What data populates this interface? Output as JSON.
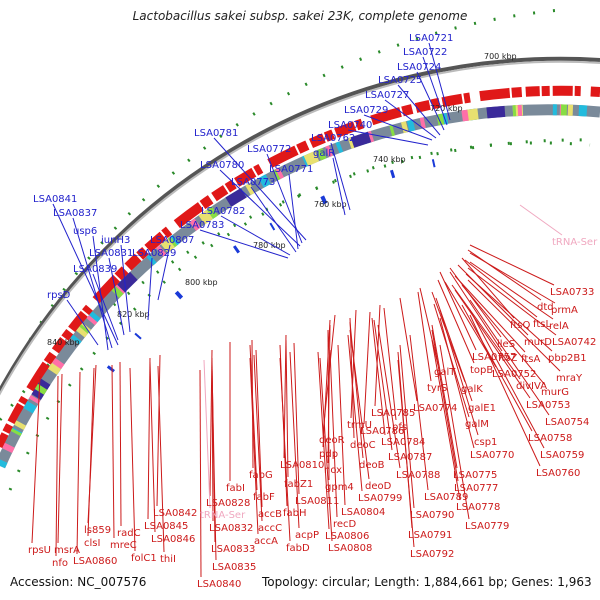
{
  "title": "Lactobacillus sakei subsp. sakei 23K, complete genome",
  "footer": {
    "accession": "Accession: NC_007576",
    "summary": "Topology: circular; Length: 1,884,661 bp; Genes: 1,963"
  },
  "colors": {
    "blue_label": "#2222cc",
    "red_label": "#cc1a1a",
    "pink_label": "#f0a8c0",
    "backbone": "#888888",
    "forward_gene": "#1a3ad8",
    "reverse_gene": "#e01818",
    "gc_marker": "#2a7a2a"
  },
  "tick_labels": [
    "700 kbp",
    "720 kbp",
    "740 kbp",
    "760 kbp",
    "780 kbp",
    "800 kbp",
    "820 kbp",
    "840 kbp"
  ],
  "blue_labels": [
    "LSA0721",
    "LSA0722",
    "LSA0724",
    "LSA0725",
    "LSA0727",
    "LSA0729",
    "LSA0740",
    "LSA0762",
    "galR",
    "LSA0781",
    "LSA0772",
    "LSA0780",
    "LSA0771",
    "LSA0773",
    "LSA0782",
    "LSA0783",
    "LSA0807",
    "LSA0829",
    "LSA0841",
    "LSA0837",
    "usp6",
    "iunH3",
    "LSA0831",
    "LSA0839",
    "rpsD"
  ],
  "red_labels": [
    "LSA0733",
    "dtd",
    "prmA",
    "ftsQ",
    "ftsL",
    "relA",
    "murD",
    "LSA0742",
    "ileS",
    "ftsZ",
    "pbp2B1",
    "LSA0757",
    "ftsA",
    "mraY",
    "topB",
    "LSA0752",
    "murG",
    "divIVA",
    "LSA0753",
    "galT",
    "tyrS",
    "galK",
    "LSA0754",
    "LSA0774",
    "galE1",
    "LSA0758",
    "LSA0785",
    "pfs",
    "galM",
    "trmU",
    "LSA0786",
    "csp1",
    "LSA0759",
    "deoR",
    "deoC",
    "LSA0784",
    "LSA0770",
    "pdp",
    "LSA0787",
    "LSA0760",
    "deoB",
    "nox",
    "LSA0788",
    "LSA0775",
    "gpm4",
    "LSA0810",
    "LSA0777",
    "fabG",
    "deoD",
    "fabI",
    "fabZ1",
    "LSA0799",
    "LSA0789",
    "fabF",
    "LSA0811",
    "LSA0778",
    "fabH",
    "LSA0804",
    "LSA0828",
    "accB",
    "recD",
    "LSA0790",
    "LSA0779",
    "LSA0842",
    "accC",
    "acpP",
    "LSA0806",
    "LSA0845",
    "accA",
    "LSA0832",
    "LSA0791",
    "fabD",
    "LSA0808",
    "ls859",
    "radC",
    "LSA0846",
    "clsI",
    "mreC",
    "LSA0860",
    "LSA0833",
    "LSA0792",
    "rpsU",
    "msrA",
    "folC1",
    "thiI",
    "nfo",
    "LSA0835",
    "LSA0840"
  ],
  "pink_labels": [
    "tRNA-Ser",
    "tRNA-Ser"
  ]
}
